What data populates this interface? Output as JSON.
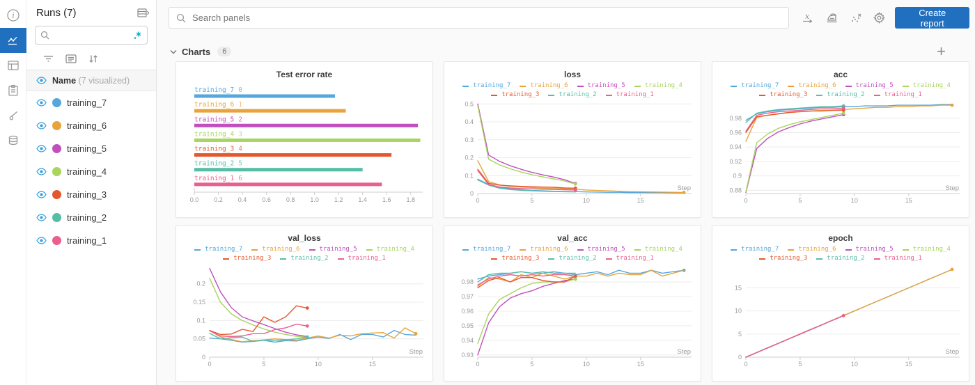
{
  "nav_rail": {
    "items": [
      "info",
      "workspace-charts",
      "table",
      "logs",
      "sweeps-brush",
      "artifacts-database"
    ],
    "active": "workspace-charts"
  },
  "runs_panel": {
    "title": "Runs (7)",
    "search_placeholder": "",
    "name_label": "Name",
    "visualized_label": "(7 visualized)",
    "runs": [
      {
        "name": "training_7",
        "color": "#55A7DC"
      },
      {
        "name": "training_6",
        "color": "#E8A33D"
      },
      {
        "name": "training_5",
        "color": "#C050BE"
      },
      {
        "name": "training_4",
        "color": "#A9D45F"
      },
      {
        "name": "training_3",
        "color": "#E4582E"
      },
      {
        "name": "training_2",
        "color": "#56BDA6"
      },
      {
        "name": "training_1",
        "color": "#EA5F8F"
      }
    ]
  },
  "topbar": {
    "search_placeholder": "Search panels",
    "create_report_label": "Create report"
  },
  "section": {
    "title": "Charts",
    "count": "6"
  },
  "accent_color": "#2170bf",
  "eye_color": "#2D9CDB",
  "regex_icon_color": "#00AFC7",
  "chart_data": [
    {
      "type": "bar",
      "title": "Test error rate",
      "orientation": "horizontal",
      "xlim": [
        0,
        1.9
      ],
      "xticks": [
        0.0,
        0.2,
        0.4,
        0.6,
        0.8,
        1.0,
        1.2,
        1.4,
        1.6,
        1.8
      ],
      "xtick_labels": [
        "0.0",
        "0.2",
        "0.4",
        "0.6",
        "0.8",
        "1.0",
        "1.2",
        "1.4",
        "1.6",
        "1.8"
      ],
      "bars": [
        {
          "name": "training_7",
          "index": "0",
          "color": "#55A7DC",
          "value": 1.17
        },
        {
          "name": "training_6",
          "index": "1",
          "color": "#E8A33D",
          "value": 1.26
        },
        {
          "name": "training_5",
          "index": "2",
          "color": "#C050BE",
          "value": 1.86
        },
        {
          "name": "training_4",
          "index": "3",
          "color": "#A9D45F",
          "value": 1.88
        },
        {
          "name": "training_3",
          "index": "4",
          "color": "#E4582E",
          "value": 1.64
        },
        {
          "name": "training_2",
          "index": "5",
          "color": "#56BDA6",
          "value": 1.4
        },
        {
          "name": "training_1",
          "index": "6",
          "color": "#EA5F8F",
          "value": 1.56
        }
      ]
    },
    {
      "type": "line",
      "title": "loss",
      "xlabel": "Step",
      "xlim": [
        0,
        19.7
      ],
      "ylim": [
        0,
        0.505
      ],
      "xticks": [
        0,
        5,
        10,
        15
      ],
      "xtick_labels": [
        "0",
        "5",
        "10",
        "15"
      ],
      "yticks": [
        0,
        0.1,
        0.2,
        0.3,
        0.4,
        0.5
      ],
      "ytick_labels": [
        "0",
        "0.1",
        "0.2",
        "0.3",
        "0.4",
        "0.5"
      ],
      "legend_position": "top",
      "grid": true,
      "series": [
        {
          "name": "training_7",
          "color": "#55A7DC",
          "dot": false,
          "y": [
            0.08,
            0.051,
            0.034,
            0.026,
            0.021,
            0.017,
            0.015,
            0.013,
            0.012,
            0.011,
            0.009,
            0.008,
            0.007,
            0.007,
            0.006,
            0.006,
            0.005,
            0.005,
            0.004,
            0.004
          ]
        },
        {
          "name": "training_6",
          "color": "#E8A33D",
          "dot": true,
          "y": [
            0.183,
            0.067,
            0.048,
            0.04,
            0.036,
            0.033,
            0.03,
            0.028,
            0.026,
            0.024,
            0.02,
            0.017,
            0.015,
            0.013,
            0.011,
            0.01,
            0.009,
            0.008,
            0.007,
            0.006
          ]
        },
        {
          "name": "training_5",
          "color": "#C050BE",
          "dot": true,
          "y": [
            0.5,
            0.215,
            0.18,
            0.155,
            0.135,
            0.118,
            0.104,
            0.092,
            0.077,
            0.056
          ]
        },
        {
          "name": "training_4",
          "color": "#A9D45F",
          "dot": true,
          "y": [
            0.49,
            0.192,
            0.16,
            0.138,
            0.12,
            0.105,
            0.093,
            0.082,
            0.07,
            0.053
          ]
        },
        {
          "name": "training_3",
          "color": "#E4582E",
          "dot": true,
          "y": [
            0.135,
            0.057,
            0.047,
            0.043,
            0.04,
            0.038,
            0.036,
            0.035,
            0.031,
            0.03
          ]
        },
        {
          "name": "training_2",
          "color": "#56BDA6",
          "dot": false,
          "y": [
            0.076,
            0.047,
            0.03,
            0.022,
            0.018,
            0.015,
            0.013,
            0.011,
            0.01,
            0.009
          ]
        },
        {
          "name": "training_1",
          "color": "#EA5F8F",
          "dot": true,
          "y": [
            0.128,
            0.05,
            0.037,
            0.031,
            0.028,
            0.026,
            0.024,
            0.023,
            0.021,
            0.02
          ]
        }
      ]
    },
    {
      "type": "line",
      "title": "acc",
      "xlabel": "Step",
      "xlim": [
        0,
        19.7
      ],
      "ylim": [
        0.8755,
        1.001
      ],
      "xticks": [
        0,
        5,
        10,
        15
      ],
      "xtick_labels": [
        "0",
        "5",
        "10",
        "15"
      ],
      "yticks": [
        0.88,
        0.9,
        0.92,
        0.94,
        0.96,
        0.98
      ],
      "ytick_labels": [
        "0.88",
        "0.9",
        "0.92",
        "0.94",
        "0.96",
        "0.98"
      ],
      "legend_position": "top",
      "grid": true,
      "series": [
        {
          "name": "training_7",
          "color": "#55A7DC",
          "dot": false,
          "y": [
            0.977,
            0.986,
            0.989,
            0.991,
            0.992,
            0.993,
            0.994,
            0.995,
            0.995,
            0.996,
            0.996,
            0.997,
            0.997,
            0.997,
            0.998,
            0.998,
            0.998,
            0.998,
            0.999,
            0.999
          ]
        },
        {
          "name": "training_6",
          "color": "#E8A33D",
          "dot": true,
          "y": [
            0.948,
            0.981,
            0.984,
            0.986,
            0.988,
            0.989,
            0.99,
            0.991,
            0.991,
            0.992,
            0.993,
            0.994,
            0.995,
            0.995,
            0.996,
            0.996,
            0.997,
            0.997,
            0.998,
            0.998
          ]
        },
        {
          "name": "training_5",
          "color": "#C050BE",
          "dot": true,
          "y": [
            0.877,
            0.938,
            0.952,
            0.961,
            0.967,
            0.972,
            0.976,
            0.979,
            0.982,
            0.985
          ]
        },
        {
          "name": "training_4",
          "color": "#A9D45F",
          "dot": true,
          "y": [
            0.878,
            0.946,
            0.958,
            0.966,
            0.971,
            0.975,
            0.978,
            0.981,
            0.984,
            0.987
          ]
        },
        {
          "name": "training_3",
          "color": "#E4582E",
          "dot": true,
          "y": [
            0.96,
            0.982,
            0.984,
            0.986,
            0.988,
            0.989,
            0.99,
            0.99,
            0.991,
            0.991
          ]
        },
        {
          "name": "training_2",
          "color": "#56BDA6",
          "dot": true,
          "y": [
            0.974,
            0.987,
            0.99,
            0.992,
            0.993,
            0.994,
            0.995,
            0.996,
            0.996,
            0.997
          ]
        },
        {
          "name": "training_1",
          "color": "#EA5F8F",
          "dot": true,
          "y": [
            0.962,
            0.984,
            0.987,
            0.989,
            0.99,
            0.991,
            0.992,
            0.993,
            0.993,
            0.994
          ]
        }
      ]
    },
    {
      "type": "line",
      "title": "val_loss",
      "xlabel": "Step",
      "xlim": [
        0,
        19.7
      ],
      "ylim": [
        0,
        0.247
      ],
      "xticks": [
        0,
        5,
        10,
        15
      ],
      "xtick_labels": [
        "0",
        "5",
        "10",
        "15"
      ],
      "yticks": [
        0,
        0.05,
        0.1,
        0.15,
        0.2
      ],
      "ytick_labels": [
        "0",
        "0.05",
        "0.1",
        "0.15",
        "0.2"
      ],
      "legend_position": "top",
      "grid": true,
      "series": [
        {
          "name": "training_7",
          "color": "#55A7DC",
          "dot": false,
          "y": [
            0.052,
            0.05,
            0.046,
            0.041,
            0.043,
            0.046,
            0.041,
            0.045,
            0.044,
            0.05,
            0.055,
            0.051,
            0.062,
            0.048,
            0.062,
            0.062,
            0.055,
            0.073,
            0.062,
            0.06
          ]
        },
        {
          "name": "training_6",
          "color": "#E8A33D",
          "dot": true,
          "y": [
            0.073,
            0.055,
            0.048,
            0.042,
            0.045,
            0.047,
            0.05,
            0.048,
            0.046,
            0.052,
            0.058,
            0.052,
            0.06,
            0.058,
            0.064,
            0.066,
            0.067,
            0.052,
            0.08,
            0.064
          ]
        },
        {
          "name": "training_5",
          "color": "#C050BE",
          "dot": false,
          "y": [
            0.242,
            0.178,
            0.135,
            0.11,
            0.099,
            0.089,
            0.078,
            0.068,
            0.061,
            0.056
          ]
        },
        {
          "name": "training_4",
          "color": "#A9D45F",
          "dot": false,
          "y": [
            0.215,
            0.15,
            0.118,
            0.1,
            0.088,
            0.077,
            0.068,
            0.062,
            0.057,
            0.054
          ]
        },
        {
          "name": "training_3",
          "color": "#E4582E",
          "dot": true,
          "y": [
            0.073,
            0.062,
            0.063,
            0.076,
            0.07,
            0.11,
            0.095,
            0.11,
            0.14,
            0.134
          ]
        },
        {
          "name": "training_2",
          "color": "#56BDA6",
          "dot": true,
          "y": [
            0.065,
            0.05,
            0.053,
            0.055,
            0.043,
            0.047,
            0.046,
            0.047,
            0.05,
            0.055
          ]
        },
        {
          "name": "training_1",
          "color": "#EA5F8F",
          "dot": true,
          "y": [
            0.072,
            0.058,
            0.056,
            0.058,
            0.064,
            0.064,
            0.075,
            0.08,
            0.09,
            0.085
          ]
        }
      ]
    },
    {
      "type": "line",
      "title": "val_acc",
      "xlabel": "Step",
      "xlim": [
        0,
        19.7
      ],
      "ylim": [
        0.9285,
        0.9905
      ],
      "xticks": [
        0,
        5,
        10,
        15
      ],
      "xtick_labels": [
        "0",
        "5",
        "10",
        "15"
      ],
      "yticks": [
        0.93,
        0.94,
        0.95,
        0.96,
        0.97,
        0.98
      ],
      "ytick_labels": [
        "0.93",
        "0.94",
        "0.95",
        "0.96",
        "0.97",
        "0.98"
      ],
      "legend_position": "top",
      "grid": true,
      "series": [
        {
          "name": "training_7",
          "color": "#55A7DC",
          "dot": true,
          "y": [
            0.982,
            0.984,
            0.985,
            0.986,
            0.987,
            0.986,
            0.986,
            0.987,
            0.986,
            0.985,
            0.986,
            0.987,
            0.985,
            0.988,
            0.986,
            0.986,
            0.988,
            0.986,
            0.987,
            0.988
          ]
        },
        {
          "name": "training_6",
          "color": "#E8A33D",
          "dot": false,
          "y": [
            0.977,
            0.983,
            0.982,
            0.98,
            0.985,
            0.983,
            0.986,
            0.984,
            0.982,
            0.984,
            0.984,
            0.986,
            0.984,
            0.986,
            0.985,
            0.985,
            0.988,
            0.984,
            0.986,
            0.988
          ]
        },
        {
          "name": "training_5",
          "color": "#C050BE",
          "dot": true,
          "y": [
            0.93,
            0.952,
            0.963,
            0.969,
            0.972,
            0.974,
            0.977,
            0.979,
            0.981,
            0.982
          ]
        },
        {
          "name": "training_4",
          "color": "#A9D45F",
          "dot": true,
          "y": [
            0.938,
            0.958,
            0.968,
            0.972,
            0.976,
            0.979,
            0.98,
            0.98,
            0.98,
            0.982
          ]
        },
        {
          "name": "training_3",
          "color": "#E4582E",
          "dot": true,
          "y": [
            0.976,
            0.981,
            0.983,
            0.98,
            0.983,
            0.983,
            0.981,
            0.98,
            0.98,
            0.984
          ]
        },
        {
          "name": "training_2",
          "color": "#56BDA6",
          "dot": false,
          "y": [
            0.98,
            0.985,
            0.986,
            0.986,
            0.987,
            0.986,
            0.987,
            0.986,
            0.986,
            0.986
          ]
        },
        {
          "name": "training_1",
          "color": "#EA5F8F",
          "dot": false,
          "y": [
            0.978,
            0.982,
            0.984,
            0.985,
            0.984,
            0.985,
            0.984,
            0.985,
            0.985,
            0.984
          ]
        }
      ]
    },
    {
      "type": "line",
      "title": "epoch",
      "xlabel": "Step",
      "xlim": [
        0,
        19.7
      ],
      "ylim": [
        0,
        19.6
      ],
      "xticks": [
        0,
        5,
        10,
        15
      ],
      "xtick_labels": [
        "0",
        "5",
        "10",
        "15"
      ],
      "yticks": [
        0,
        5,
        10,
        15
      ],
      "ytick_labels": [
        "0",
        "5",
        "10",
        "15"
      ],
      "legend_position": "top",
      "grid": true,
      "series": [
        {
          "name": "training_7",
          "color": "#55A7DC",
          "dot": false,
          "y": [
            0,
            1,
            2,
            3,
            4,
            5,
            6,
            7,
            8,
            9,
            10,
            11,
            12,
            13,
            14,
            15,
            16,
            17,
            18,
            19
          ]
        },
        {
          "name": "training_6",
          "color": "#E8A33D",
          "dot": true,
          "y": [
            0,
            1,
            2,
            3,
            4,
            5,
            6,
            7,
            8,
            9,
            10,
            11,
            12,
            13,
            14,
            15,
            16,
            17,
            18,
            19
          ]
        },
        {
          "name": "training_5",
          "color": "#C050BE",
          "dot": false,
          "y": [
            0,
            1,
            2,
            3,
            4,
            5,
            6,
            7,
            8,
            9
          ]
        },
        {
          "name": "training_4",
          "color": "#A9D45F",
          "dot": false,
          "y": [
            0,
            1,
            2,
            3,
            4,
            5,
            6,
            7,
            8,
            9
          ]
        },
        {
          "name": "training_3",
          "color": "#E4582E",
          "dot": false,
          "y": [
            0,
            1,
            2,
            3,
            4,
            5,
            6,
            7,
            8,
            9
          ]
        },
        {
          "name": "training_2",
          "color": "#56BDA6",
          "dot": false,
          "y": [
            0,
            1,
            2,
            3,
            4,
            5,
            6,
            7,
            8,
            9
          ]
        },
        {
          "name": "training_1",
          "color": "#EA5F8F",
          "dot": true,
          "y": [
            0,
            1,
            2,
            3,
            4,
            5,
            6,
            7,
            8,
            9
          ]
        }
      ]
    }
  ]
}
